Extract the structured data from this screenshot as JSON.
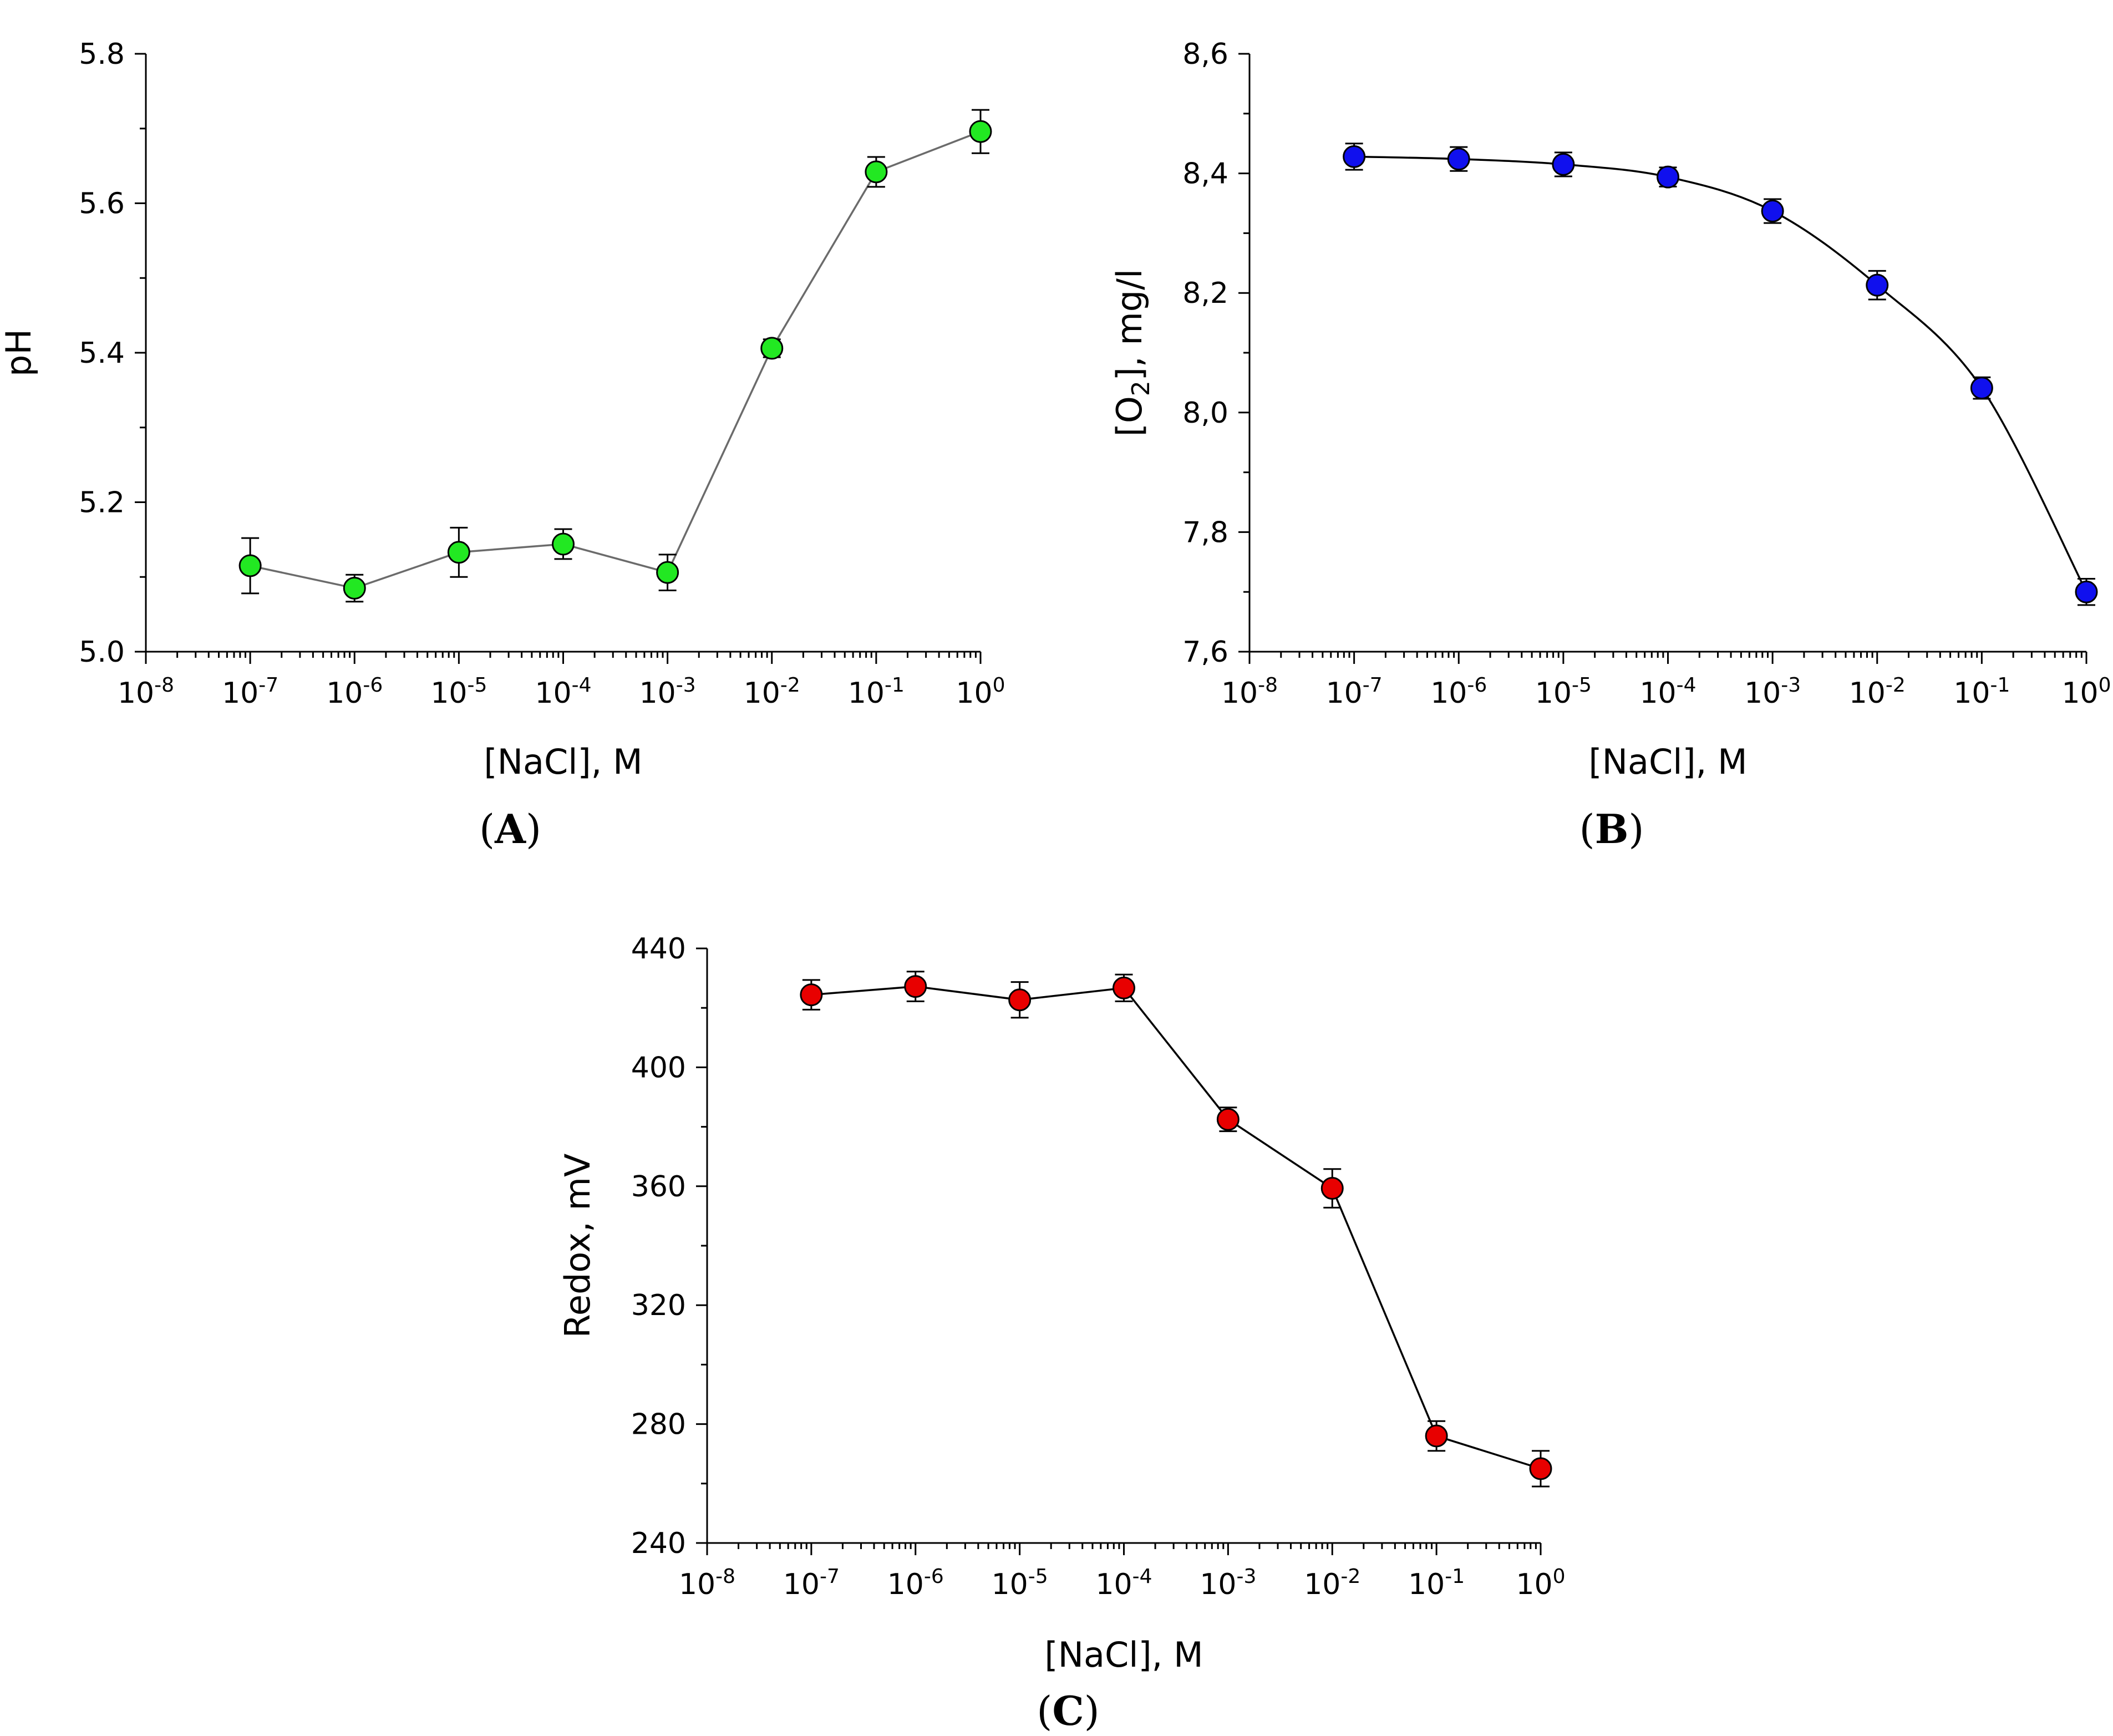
{
  "figure": {
    "panels": [
      "(A)",
      "(B)",
      "(C)"
    ]
  },
  "chart_data": [
    {
      "id": "A",
      "type": "line",
      "panel_label": "A",
      "title": "",
      "xlabel": "[NaCl], M",
      "ylabel": "pH",
      "xscale": "log10",
      "xlim": [
        -8,
        0
      ],
      "ylim": [
        5.0,
        5.8
      ],
      "yticks": [
        "5.0",
        "5.2",
        "5.4",
        "5.6",
        "5.8"
      ],
      "ytick_values": [
        5.0,
        5.2,
        5.4,
        5.6,
        5.8
      ],
      "yminor_step": 0.1,
      "xtick_exponents": [
        "-8",
        "-7",
        "-6",
        "-5",
        "-4",
        "-3",
        "-2",
        "-1",
        "0"
      ],
      "x": [
        -7,
        -6,
        -5,
        -4,
        -3,
        -2,
        -1,
        0
      ],
      "values": [
        5.115,
        5.085,
        5.133,
        5.144,
        5.106,
        5.406,
        5.642,
        5.696
      ],
      "errors": [
        0.037,
        0.018,
        0.033,
        0.02,
        0.024,
        0.012,
        0.02,
        0.029
      ],
      "line_style": "polyline",
      "marker_color": "#22e822",
      "line_color": "#6b6b6b"
    },
    {
      "id": "B",
      "type": "line",
      "panel_label": "B",
      "title": "",
      "xlabel": "[NaCl], M",
      "ylabel_parts": [
        "[O",
        "2",
        "], mg/l"
      ],
      "xscale": "log10",
      "xlim": [
        -8,
        0
      ],
      "ylim": [
        7.6,
        8.6
      ],
      "yticks": [
        "7,6",
        "7,8",
        "8,0",
        "8,2",
        "8,4",
        "8,6"
      ],
      "ytick_values": [
        7.6,
        7.8,
        8.0,
        8.2,
        8.4,
        8.6
      ],
      "yminor_step": 0.1,
      "xtick_exponents": [
        "-8",
        "-7",
        "-6",
        "-5",
        "-4",
        "-3",
        "-2",
        "-1",
        "0"
      ],
      "x": [
        -7,
        -6,
        -5,
        -4,
        -3,
        -2,
        -1,
        0
      ],
      "values": [
        8.428,
        8.424,
        8.415,
        8.394,
        8.337,
        8.213,
        8.041,
        7.7
      ],
      "errors": [
        0.022,
        0.02,
        0.02,
        0.016,
        0.02,
        0.024,
        0.018,
        0.022
      ],
      "line_style": "smooth",
      "marker_color": "#1010ee",
      "line_color": "#000000"
    },
    {
      "id": "C",
      "type": "line",
      "panel_label": "C",
      "title": "",
      "xlabel": "[NaCl], M",
      "ylabel": "Redox, mV",
      "xscale": "log10",
      "xlim": [
        -8,
        0
      ],
      "ylim": [
        240,
        440
      ],
      "yticks": [
        "240",
        "280",
        "320",
        "360",
        "400",
        "440"
      ],
      "ytick_values": [
        240,
        280,
        320,
        360,
        400,
        440
      ],
      "yminor_step": 20,
      "xtick_exponents": [
        "-8",
        "-7",
        "-6",
        "-5",
        "-4",
        "-3",
        "-2",
        "-1",
        "0"
      ],
      "x": [
        -7,
        -6,
        -5,
        -4,
        -3,
        -2,
        -1,
        0
      ],
      "values": [
        424.4,
        427.2,
        422.7,
        426.7,
        382.5,
        359.3,
        276.0,
        265.0
      ],
      "errors": [
        5.0,
        5.0,
        6.0,
        4.5,
        4.0,
        6.5,
        5.0,
        6.0
      ],
      "line_style": "polyline",
      "marker_color": "#e80000",
      "line_color": "#000000"
    }
  ]
}
